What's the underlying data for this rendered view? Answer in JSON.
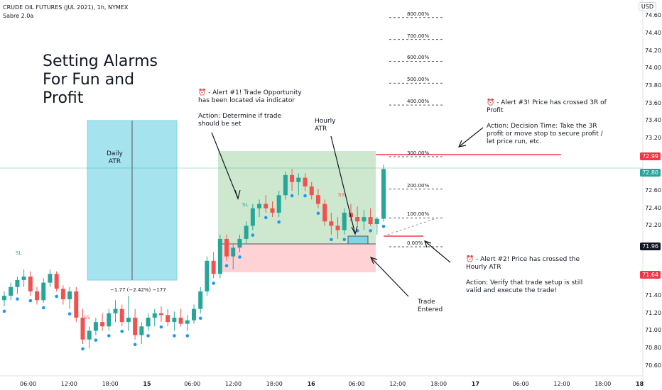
{
  "header": {
    "symbol_line": "CRUDE OIL FUTURES (JUL 2021), 1h, NYMEX",
    "indicator": "Sabre 2.0a",
    "currency_button": "USD"
  },
  "title_lines": [
    "Setting Alarms",
    "For Fun and",
    "Profit"
  ],
  "atr_box": {
    "label": "Daily\nATR",
    "measure": "−1.77 (−2.42%) −177"
  },
  "annotations": {
    "alert1": "⏰ - Alert #1! Trade Opportunity\nhas been located via indicator\n\nAction: Determine if trade\nshould be set",
    "hourly_atr": "Hourly\nATR",
    "alert3": "⏰ - Alert #3! Price has crossed 3R of\nProfit\n\nAction: Decision Time: Take the 3R\nprofit or move stop to secure profit /\nlet price run, etc.",
    "alert2": "⏰ - Alert #2! Price has crossed the\nHourly ATR\n\nAction: Verify that trade setup is still\nvalid and execute the trade!",
    "trade_entered": "Trade\nEntered"
  },
  "signals": {
    "sl": "SL",
    "ss": "SS"
  },
  "fib_levels": [
    {
      "label": "800.00%",
      "value": 74.58
    },
    {
      "label": "700.00%",
      "value": 74.33
    },
    {
      "label": "600.00%",
      "value": 74.08
    },
    {
      "label": "500.00%",
      "value": 73.83
    },
    {
      "label": "400.00%",
      "value": 73.58
    },
    {
      "label": "300.00%",
      "value": 72.99
    },
    {
      "label": "200.00%",
      "value": 72.62
    },
    {
      "label": "100.00%",
      "value": 72.29
    },
    {
      "label": "0.00%",
      "value": 71.96
    }
  ],
  "y_axis": {
    "ticks": [
      "74.60",
      "74.40",
      "74.20",
      "74.00",
      "73.80",
      "73.60",
      "73.40",
      "73.20",
      "72.60",
      "72.40",
      "72.20",
      "71.40",
      "71.20",
      "71.00",
      "70.80",
      "70.60"
    ],
    "price_tags": [
      {
        "label": "72.99",
        "color": "#f23645"
      },
      {
        "label": "72.80",
        "color": "#26a69a"
      },
      {
        "label": "71.96",
        "color": "#131722"
      },
      {
        "label": "71.64",
        "color": "#f23645"
      }
    ]
  },
  "x_axis": {
    "ticks": [
      "06:00",
      "12:00",
      "18:00",
      "15",
      "06:00",
      "12:00",
      "18:00",
      "16",
      "06:00",
      "12:00",
      "18:00",
      "17",
      "06:00",
      "12:00",
      "18:00",
      "18"
    ]
  },
  "colors": {
    "up": "#26a69a",
    "down": "#ef5350",
    "dot": "#2196f3",
    "profit": "#c8e6c9",
    "loss": "#ffcdd2",
    "atr": "#a5e3ef"
  },
  "chart_data": {
    "type": "candlestick",
    "ylim": [
      70.55,
      74.7
    ],
    "candles": [
      [
        71.35,
        71.45,
        71.28,
        71.4
      ],
      [
        71.4,
        71.55,
        71.35,
        71.5
      ],
      [
        71.5,
        71.62,
        71.42,
        71.58
      ],
      [
        71.58,
        71.7,
        71.5,
        71.62
      ],
      [
        71.62,
        71.68,
        71.4,
        71.45
      ],
      [
        71.45,
        71.5,
        71.3,
        71.35
      ],
      [
        71.35,
        71.6,
        71.32,
        71.55
      ],
      [
        71.55,
        71.7,
        71.5,
        71.65
      ],
      [
        71.65,
        71.68,
        71.45,
        71.48
      ],
      [
        71.48,
        71.52,
        71.3,
        71.36
      ],
      [
        71.36,
        71.5,
        71.25,
        71.45
      ],
      [
        71.45,
        71.5,
        71.1,
        71.15
      ],
      [
        71.15,
        71.25,
        70.85,
        70.9
      ],
      [
        70.9,
        71.05,
        70.8,
        71.0
      ],
      [
        71.0,
        71.15,
        70.95,
        71.1
      ],
      [
        71.1,
        71.2,
        71.0,
        71.05
      ],
      [
        71.05,
        71.25,
        71.0,
        71.2
      ],
      [
        71.2,
        71.35,
        71.1,
        71.25
      ],
      [
        71.25,
        71.3,
        71.05,
        71.1
      ],
      [
        71.1,
        71.4,
        71.0,
        71.15
      ],
      [
        71.15,
        71.25,
        70.9,
        70.95
      ],
      [
        70.95,
        71.1,
        70.85,
        71.05
      ],
      [
        71.05,
        71.2,
        71.0,
        71.15
      ],
      [
        71.15,
        71.25,
        71.05,
        71.2
      ],
      [
        71.2,
        71.28,
        71.1,
        71.18
      ],
      [
        71.18,
        71.25,
        71.05,
        71.1
      ],
      [
        71.1,
        71.22,
        71.0,
        71.15
      ],
      [
        71.15,
        71.25,
        71.05,
        71.08
      ],
      [
        71.08,
        71.18,
        71.0,
        71.12
      ],
      [
        71.12,
        71.3,
        71.08,
        71.25
      ],
      [
        71.25,
        71.5,
        71.2,
        71.45
      ],
      [
        71.45,
        71.85,
        71.4,
        71.8
      ],
      [
        71.8,
        71.9,
        71.6,
        71.65
      ],
      [
        71.65,
        72.1,
        71.6,
        72.05
      ],
      [
        72.05,
        72.1,
        71.8,
        71.85
      ],
      [
        71.85,
        72.0,
        71.7,
        71.95
      ],
      [
        71.95,
        72.1,
        71.9,
        72.05
      ],
      [
        72.05,
        72.25,
        72.0,
        72.2
      ],
      [
        72.2,
        72.45,
        72.15,
        72.4
      ],
      [
        72.4,
        72.5,
        72.3,
        72.45
      ],
      [
        72.45,
        72.55,
        72.35,
        72.4
      ],
      [
        72.4,
        72.48,
        72.3,
        72.35
      ],
      [
        72.35,
        72.6,
        72.3,
        72.55
      ],
      [
        72.55,
        72.82,
        72.5,
        72.78
      ],
      [
        72.78,
        72.85,
        72.6,
        72.7
      ],
      [
        72.7,
        72.8,
        72.55,
        72.75
      ],
      [
        72.75,
        72.8,
        72.6,
        72.65
      ],
      [
        72.65,
        72.7,
        72.5,
        72.55
      ],
      [
        72.55,
        72.62,
        72.4,
        72.45
      ],
      [
        72.45,
        72.5,
        72.2,
        72.25
      ],
      [
        72.25,
        72.35,
        72.1,
        72.2
      ],
      [
        72.2,
        72.3,
        72.05,
        72.15
      ],
      [
        72.15,
        72.4,
        72.1,
        72.35
      ],
      [
        72.35,
        72.45,
        72.25,
        72.3
      ],
      [
        72.3,
        72.42,
        72.2,
        72.25
      ],
      [
        72.25,
        72.38,
        72.15,
        72.3
      ],
      [
        72.3,
        72.4,
        72.2,
        72.22
      ],
      [
        72.22,
        72.3,
        72.1,
        72.28
      ],
      [
        72.28,
        72.9,
        72.25,
        72.85
      ]
    ]
  }
}
